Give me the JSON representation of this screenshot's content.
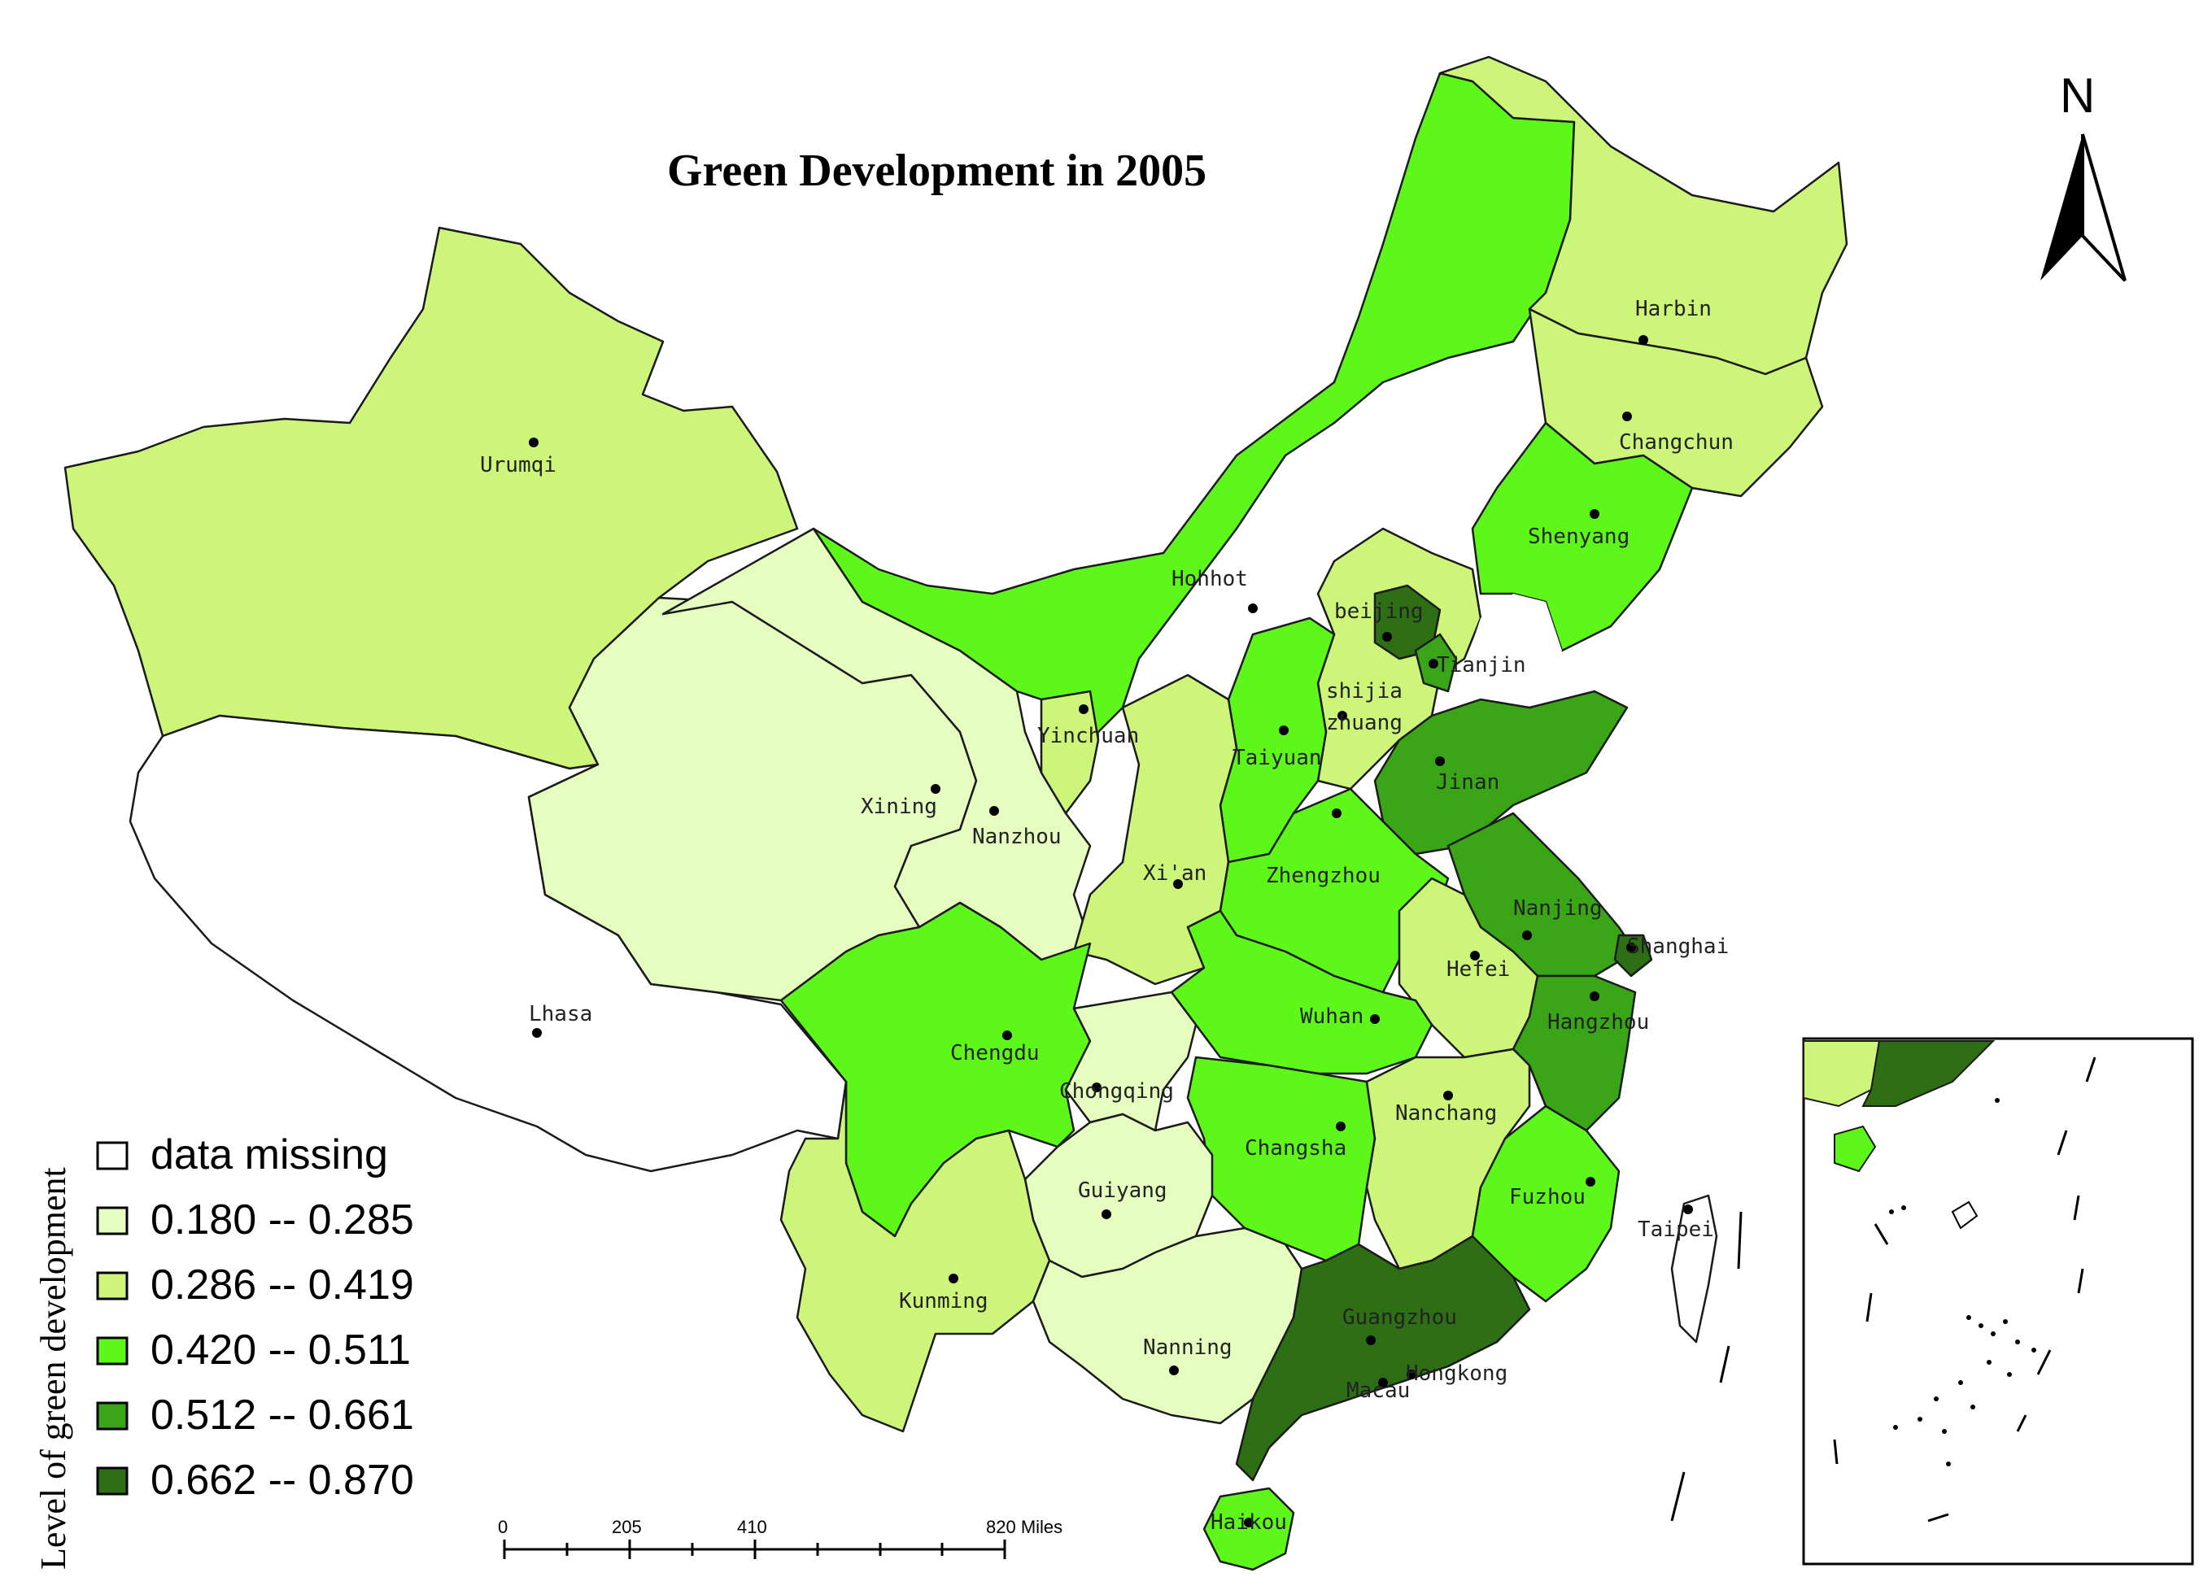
{
  "title": "Green Development in 2005",
  "north_label": "N",
  "legend": {
    "title": "Level of green development",
    "classes": [
      {
        "label": "data missing",
        "color": "#ffffff"
      },
      {
        "label": "0.180 -- 0.285",
        "color": "#e6fdc0"
      },
      {
        "label": "0.286 -- 0.419",
        "color": "#ccf57a"
      },
      {
        "label": "0.420 -- 0.511",
        "color": "#5ef71a"
      },
      {
        "label": "0.512 -- 0.661",
        "color": "#3aa517"
      },
      {
        "label": "0.662 -- 0.870",
        "color": "#2e6e14"
      }
    ]
  },
  "scale_bar": {
    "labels": [
      "0",
      "205",
      "410",
      "820 Miles"
    ]
  },
  "cities": [
    {
      "id": "urumqi",
      "name": "Urumqi",
      "class": 2
    },
    {
      "id": "lhasa",
      "name": "Lhasa",
      "class": 0
    },
    {
      "id": "xining",
      "name": "Xining",
      "class": 1
    },
    {
      "id": "lanzhou",
      "name": "Nanzhou",
      "class": 1
    },
    {
      "id": "yinchuan",
      "name": "Yinchuan",
      "class": 2
    },
    {
      "id": "hohhot",
      "name": "Hohhot",
      "class": 3
    },
    {
      "id": "harbin",
      "name": "Harbin",
      "class": 2
    },
    {
      "id": "changchun",
      "name": "Changchun",
      "class": 2
    },
    {
      "id": "shenyang",
      "name": "Shenyang",
      "class": 3
    },
    {
      "id": "beijing",
      "name": "beijing",
      "class": 5
    },
    {
      "id": "tianjin",
      "name": "Tianjin",
      "class": 4
    },
    {
      "id": "shijiazhuang_a",
      "name": "shijia",
      "class": 2
    },
    {
      "id": "shijiazhuang_b",
      "name": "zhuang",
      "class": 2
    },
    {
      "id": "taiyuan",
      "name": "Taiyuan",
      "class": 3
    },
    {
      "id": "jinan",
      "name": "Jinan",
      "class": 4
    },
    {
      "id": "xian",
      "name": "Xi'an",
      "class": 2
    },
    {
      "id": "zhengzhou",
      "name": "Zhengzhou",
      "class": 3
    },
    {
      "id": "nanjing",
      "name": "Nanjing",
      "class": 4
    },
    {
      "id": "shanghai",
      "name": "Shanghai",
      "class": 5
    },
    {
      "id": "hefei",
      "name": "Hefei",
      "class": 2
    },
    {
      "id": "hangzhou",
      "name": "Hangzhou",
      "class": 4
    },
    {
      "id": "wuhan",
      "name": "Wuhan",
      "class": 3
    },
    {
      "id": "chengdu",
      "name": "Chengdu",
      "class": 3
    },
    {
      "id": "chongqing",
      "name": "Chongqing",
      "class": 1
    },
    {
      "id": "nanchang",
      "name": "Nanchang",
      "class": 2
    },
    {
      "id": "changsha",
      "name": "Changsha",
      "class": 3
    },
    {
      "id": "fuzhou",
      "name": "Fuzhou",
      "class": 3
    },
    {
      "id": "taipei",
      "name": "Taipei",
      "class": 0
    },
    {
      "id": "guiyang",
      "name": "Guiyang",
      "class": 1
    },
    {
      "id": "kunming",
      "name": "Kunming",
      "class": 2
    },
    {
      "id": "nanning",
      "name": "Nanning",
      "class": 1
    },
    {
      "id": "guangzhou",
      "name": "Guangzhou",
      "class": 5
    },
    {
      "id": "hongkong",
      "name": "Hongkong",
      "class": 5
    },
    {
      "id": "macau",
      "name": "Macau",
      "class": 5
    },
    {
      "id": "haikou",
      "name": "Haikou",
      "class": 3
    }
  ]
}
